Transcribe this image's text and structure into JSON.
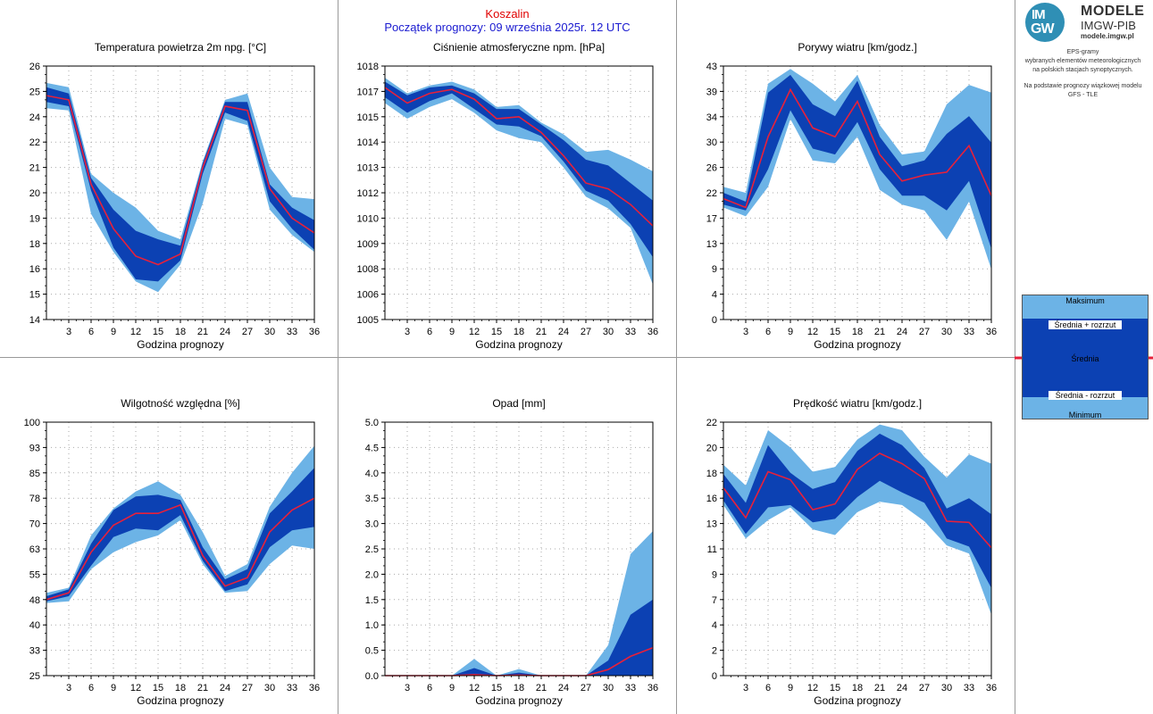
{
  "header": {
    "station": "Koszalin",
    "forecast_start": "Początek prognozy: 09 września 2025r. 12 UTC"
  },
  "logo": {
    "badge_top": "IM",
    "badge_bottom": "GW",
    "title": "MODELE",
    "subtitle": "IMGW-PIB",
    "url": "modele.imgw.pl"
  },
  "info": {
    "line1": "EPS-gramy",
    "line2": "wybranych elementów meteorologicznych",
    "line3": "na polskich stacjach  synoptycznych.",
    "line4": "Na podstawie prognozy wiązkowej modelu",
    "line5": "GFS - TLE"
  },
  "legend": {
    "max": "Maksimum",
    "mean_plus": "Średnia + rozrzut",
    "mean": "Średnia",
    "mean_minus": "Średnia - rozrzut",
    "min": "Minimum"
  },
  "colors": {
    "light_band": "#6cb3e6",
    "dark_band": "#0c41b3",
    "mean_line": "#e8203a",
    "station_text": "#e00000",
    "header_text": "#1a1ad0"
  },
  "chart_data": [
    {
      "type": "area",
      "title": "Temperatura powietrza 2m npg. [°C]",
      "xlabel": "Godzina prognozy",
      "x": [
        0,
        3,
        6,
        9,
        12,
        15,
        18,
        21,
        24,
        27,
        30,
        33,
        36
      ],
      "xticks": [
        "3",
        "6",
        "9",
        "12",
        "15",
        "18",
        "21",
        "24",
        "27",
        "30",
        "33",
        "36"
      ],
      "yticks": [
        "14",
        "15",
        "16",
        "18",
        "19",
        "20",
        "21",
        "22",
        "24",
        "25",
        "26"
      ],
      "ylim": [
        14,
        26
      ],
      "max": [
        25.2,
        25.0,
        20.9,
        20.0,
        19.3,
        18.2,
        17.8,
        21.5,
        24.4,
        24.7,
        21.2,
        19.8,
        19.7
      ],
      "mean_plus": [
        25.0,
        24.7,
        20.7,
        19.2,
        18.2,
        17.8,
        17.5,
        21.4,
        24.3,
        24.3,
        20.4,
        19.3,
        18.7
      ],
      "mean": [
        24.6,
        24.4,
        20.4,
        18.3,
        17.0,
        16.6,
        17.1,
        21.2,
        24.1,
        23.9,
        20.2,
        18.8,
        18.1
      ],
      "mean_minus": [
        24.3,
        24.1,
        20.1,
        17.4,
        15.9,
        15.8,
        16.8,
        20.9,
        23.8,
        23.4,
        19.6,
        18.3,
        17.3
      ],
      "min": [
        24.0,
        23.9,
        19.0,
        17.2,
        15.8,
        15.3,
        16.6,
        19.5,
        23.5,
        23.2,
        19.2,
        18.0,
        17.2
      ]
    },
    {
      "type": "area",
      "title": "Ciśnienie atmosferyczne npm. [hPa]",
      "xlabel": "Godzina prognozy",
      "x": [
        0,
        3,
        6,
        9,
        12,
        15,
        18,
        21,
        24,
        27,
        30,
        33,
        36
      ],
      "xticks": [
        "3",
        "6",
        "9",
        "12",
        "15",
        "18",
        "21",
        "24",
        "27",
        "30",
        "33",
        "36"
      ],
      "yticks": [
        "1005",
        "1006",
        "1008",
        "1009",
        "1010",
        "1012",
        "1013",
        "1014",
        "1015",
        "1017",
        "1018"
      ],
      "ylim": [
        1005,
        1018
      ],
      "max": [
        1017.4,
        1016.6,
        1017.0,
        1017.2,
        1016.8,
        1015.9,
        1016.0,
        1015.1,
        1014.5,
        1013.6,
        1013.7,
        1013.2,
        1012.6
      ],
      "mean_plus": [
        1017.2,
        1016.5,
        1016.9,
        1017.0,
        1016.6,
        1015.8,
        1015.8,
        1015.0,
        1014.2,
        1013.2,
        1012.9,
        1012.0,
        1011.1
      ],
      "mean": [
        1016.9,
        1016.1,
        1016.6,
        1016.8,
        1016.3,
        1015.3,
        1015.4,
        1014.6,
        1013.4,
        1012.0,
        1011.7,
        1010.9,
        1009.8
      ],
      "mean_minus": [
        1016.4,
        1015.6,
        1016.2,
        1016.6,
        1015.8,
        1015.0,
        1014.9,
        1014.4,
        1013.1,
        1011.6,
        1011.1,
        1009.9,
        1008.2
      ],
      "min": [
        1016.1,
        1015.3,
        1015.9,
        1016.3,
        1015.6,
        1014.7,
        1014.3,
        1014.1,
        1012.8,
        1011.3,
        1010.7,
        1009.7,
        1006.8
      ]
    },
    {
      "type": "area",
      "title": "Porywy wiatru [km/godz.]",
      "xlabel": "Godzina prognozy",
      "x": [
        0,
        3,
        6,
        9,
        12,
        15,
        18,
        21,
        24,
        27,
        30,
        33,
        36
      ],
      "xticks": [
        "3",
        "6",
        "9",
        "12",
        "15",
        "18",
        "21",
        "24",
        "27",
        "30",
        "33",
        "36"
      ],
      "yticks": [
        "0",
        "4",
        "9",
        "13",
        "17",
        "22",
        "26",
        "30",
        "34",
        "39",
        "43"
      ],
      "ylim": [
        0,
        43
      ],
      "max": [
        22.5,
        21.5,
        40.0,
        42.5,
        40.0,
        37.0,
        41.5,
        33.0,
        28.0,
        28.5,
        36.5,
        39.8,
        38.5
      ],
      "mean_plus": [
        21.5,
        20.0,
        38.5,
        41.5,
        36.5,
        34.5,
        40.5,
        31.0,
        26.0,
        27.0,
        31.5,
        34.5,
        30.0
      ],
      "mean": [
        20.5,
        19.0,
        31.0,
        39.0,
        32.5,
        31.0,
        37.0,
        28.0,
        23.5,
        24.5,
        25.0,
        29.5,
        21.0
      ],
      "mean_minus": [
        19.5,
        18.5,
        25.5,
        35.5,
        29.0,
        28.0,
        33.5,
        25.5,
        21.0,
        21.0,
        18.5,
        23.5,
        12.0
      ],
      "min": [
        19.0,
        17.5,
        22.5,
        34.0,
        27.0,
        26.5,
        31.0,
        22.0,
        19.5,
        18.5,
        13.5,
        20.0,
        8.5
      ]
    },
    {
      "type": "area",
      "title": "Wilgotność względna [%]",
      "xlabel": "Godzina prognozy",
      "x": [
        0,
        3,
        6,
        9,
        12,
        15,
        18,
        21,
        24,
        27,
        30,
        33,
        36
      ],
      "xticks": [
        "3",
        "6",
        "9",
        "12",
        "15",
        "18",
        "21",
        "24",
        "27",
        "30",
        "33",
        "36"
      ],
      "yticks": [
        "25",
        "33",
        "40",
        "48",
        "55",
        "63",
        "70",
        "78",
        "85",
        "93",
        "100"
      ],
      "ylim": [
        25,
        100
      ],
      "max": [
        49.5,
        51.0,
        66.5,
        74.5,
        79.5,
        82.5,
        78.5,
        67.5,
        54.5,
        58.0,
        75.0,
        85.0,
        93.0
      ],
      "mean_plus": [
        48.5,
        50.5,
        64.0,
        74.0,
        78.0,
        78.5,
        77.0,
        63.0,
        53.5,
        56.5,
        73.0,
        79.5,
        86.5
      ],
      "mean": [
        47.5,
        49.5,
        61.5,
        69.5,
        73.0,
        73.0,
        75.5,
        60.5,
        51.5,
        54.0,
        67.5,
        74.0,
        77.5
      ],
      "mean_minus": [
        47.0,
        48.5,
        57.5,
        66.0,
        68.5,
        68.0,
        72.5,
        59.0,
        50.0,
        52.0,
        63.0,
        68.0,
        69.0
      ],
      "min": [
        46.5,
        47.0,
        56.5,
        61.5,
        64.5,
        66.5,
        71.0,
        58.0,
        49.5,
        50.0,
        58.0,
        63.5,
        62.5
      ]
    },
    {
      "type": "area",
      "title": "Opad [mm]",
      "xlabel": "Godzina prognozy",
      "x": [
        0,
        3,
        6,
        9,
        12,
        15,
        18,
        21,
        24,
        27,
        30,
        33,
        36
      ],
      "xticks": [
        "3",
        "6",
        "9",
        "12",
        "15",
        "18",
        "21",
        "24",
        "27",
        "30",
        "33",
        "36"
      ],
      "yticks": [
        "0.0",
        "0.5",
        "1.0",
        "1.5",
        "2.0",
        "2.5",
        "3.0",
        "3.5",
        "4.0",
        "4.5",
        "5.0"
      ],
      "ylim": [
        0,
        5
      ],
      "max": [
        0,
        0,
        0,
        0,
        0.33,
        0,
        0.13,
        0,
        0,
        0,
        0.6,
        2.4,
        2.85
      ],
      "mean_plus": [
        0,
        0,
        0,
        0,
        0.15,
        0,
        0.06,
        0,
        0,
        0,
        0.3,
        1.2,
        1.5
      ],
      "mean": [
        0,
        0,
        0,
        0,
        0.02,
        0,
        0.01,
        0,
        0,
        0,
        0.12,
        0.38,
        0.55
      ],
      "mean_minus": [
        0,
        0,
        0,
        0,
        0,
        0,
        0,
        0,
        0,
        0,
        0,
        0,
        0
      ],
      "min": [
        0,
        0,
        0,
        0,
        0,
        0,
        0,
        0,
        0,
        0,
        0,
        0,
        0
      ]
    },
    {
      "type": "area",
      "title": "Prędkość wiatru [km/godz.]",
      "xlabel": "Godzina prognozy",
      "x": [
        0,
        3,
        6,
        9,
        12,
        15,
        18,
        21,
        24,
        27,
        30,
        33,
        36
      ],
      "xticks": [
        "3",
        "6",
        "9",
        "12",
        "15",
        "18",
        "21",
        "24",
        "27",
        "30",
        "33",
        "36"
      ],
      "yticks": [
        "0",
        "2",
        "4",
        "7",
        "9",
        "11",
        "13",
        "16",
        "18",
        "20",
        "22"
      ],
      "ylim": [
        0,
        22
      ],
      "max": [
        18.3,
        16.5,
        21.3,
        19.8,
        17.7,
        18.1,
        20.5,
        21.8,
        21.3,
        19.0,
        17.2,
        19.2,
        18.4
      ],
      "mean_plus": [
        17.5,
        15.0,
        20.0,
        17.6,
        16.2,
        16.8,
        19.5,
        21.0,
        20.0,
        18.0,
        14.5,
        15.4,
        14.0
      ],
      "mean": [
        16.3,
        13.7,
        17.7,
        17.0,
        14.4,
        14.9,
        17.9,
        19.3,
        18.4,
        17.1,
        13.4,
        13.3,
        11.1
      ],
      "mean_minus": [
        15.2,
        12.3,
        14.6,
        14.8,
        13.3,
        13.6,
        15.5,
        16.9,
        15.9,
        15.0,
        11.9,
        11.2,
        7.6
      ],
      "min": [
        14.8,
        11.9,
        13.5,
        14.6,
        12.7,
        12.2,
        14.2,
        15.1,
        14.8,
        13.4,
        11.3,
        10.6,
        5.3
      ]
    }
  ]
}
